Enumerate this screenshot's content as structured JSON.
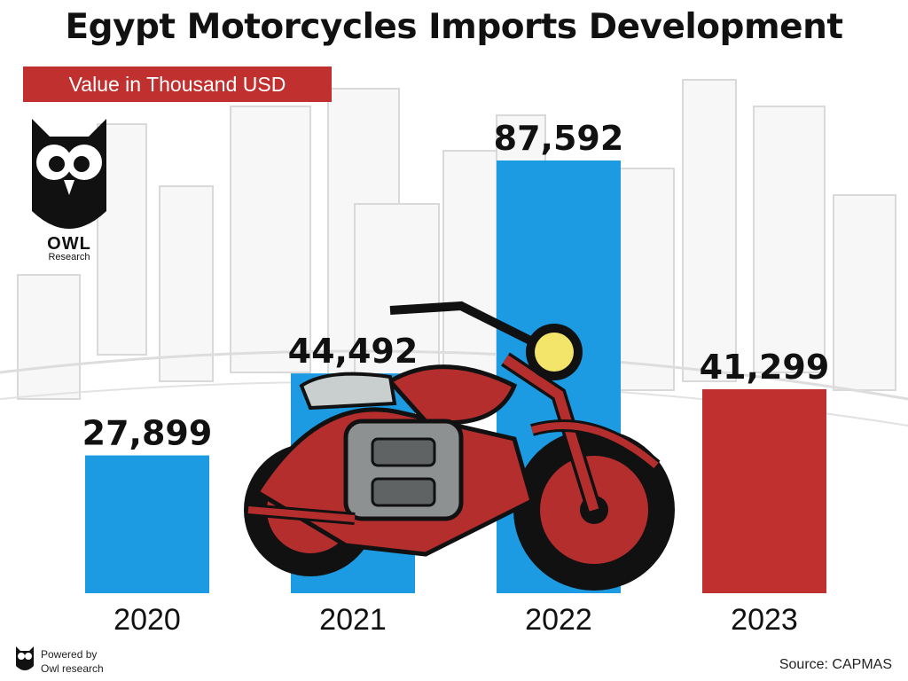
{
  "title": "Egypt Motorcycles Imports Development",
  "subtitle": "Value in Thousand USD",
  "logo": {
    "name": "OWL",
    "sub": "Research"
  },
  "footer": {
    "powered_line1": "Powered by",
    "powered_line2": "Owl research",
    "source": "Source: CAPMAS"
  },
  "colors": {
    "blue": "#1c9be2",
    "red": "#c0302f",
    "text": "#111111"
  },
  "chart_data": {
    "type": "bar",
    "title": "Egypt Motorcycles Imports Development",
    "ylabel": "Value in Thousand USD",
    "categories": [
      "2020",
      "2021",
      "2022",
      "2023"
    ],
    "values": [
      27899,
      44492,
      87592,
      41299
    ],
    "value_labels": [
      "27,899",
      "44,492",
      "87,592",
      "41,299"
    ],
    "bar_colors": [
      "#1c9be2",
      "#1c9be2",
      "#1c9be2",
      "#c0302f"
    ],
    "ylim": [
      0,
      87592
    ],
    "grid": false,
    "legend": "none"
  }
}
